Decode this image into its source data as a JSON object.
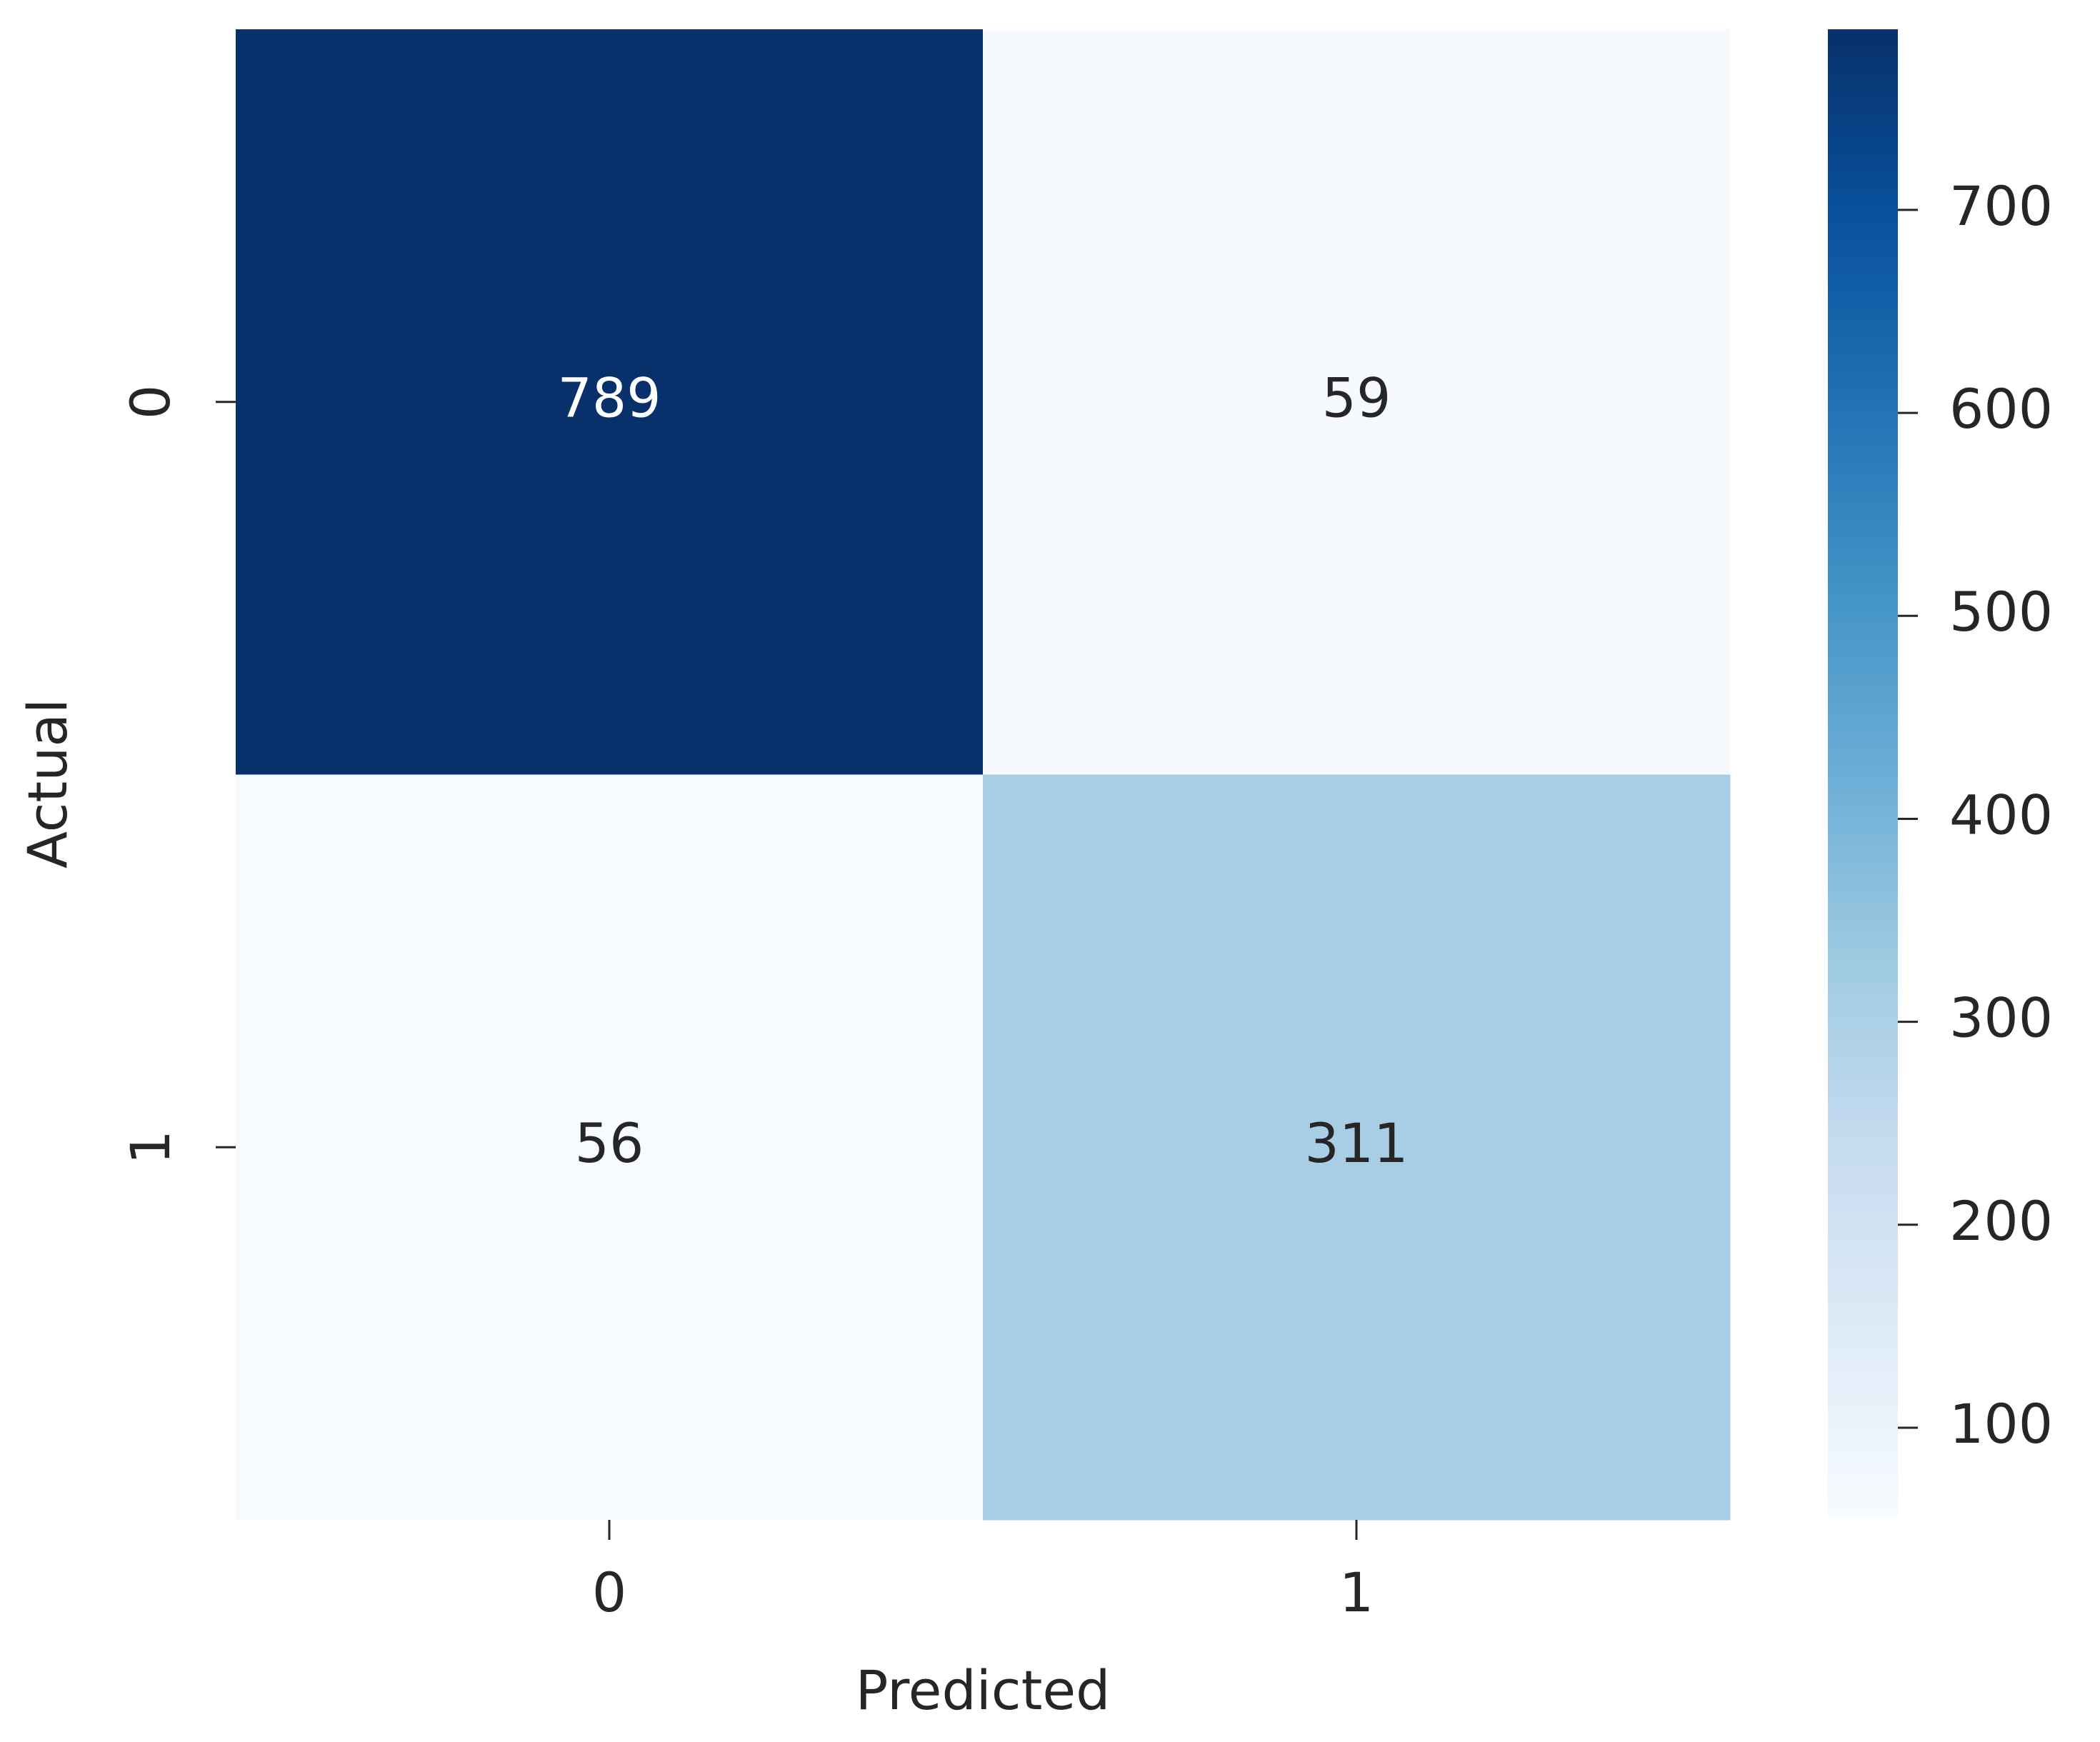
{
  "chart_data": {
    "type": "heatmap",
    "x_label": "Predicted",
    "y_label": "Actual",
    "x_categories": [
      "0",
      "1"
    ],
    "y_categories": [
      "0",
      "1"
    ],
    "values": [
      [
        789,
        59
      ],
      [
        56,
        311
      ]
    ],
    "colormap": "Blues",
    "colorbar": {
      "lim": [
        56,
        789
      ],
      "ticks": [
        100,
        200,
        300,
        400,
        500,
        600,
        700
      ]
    }
  }
}
